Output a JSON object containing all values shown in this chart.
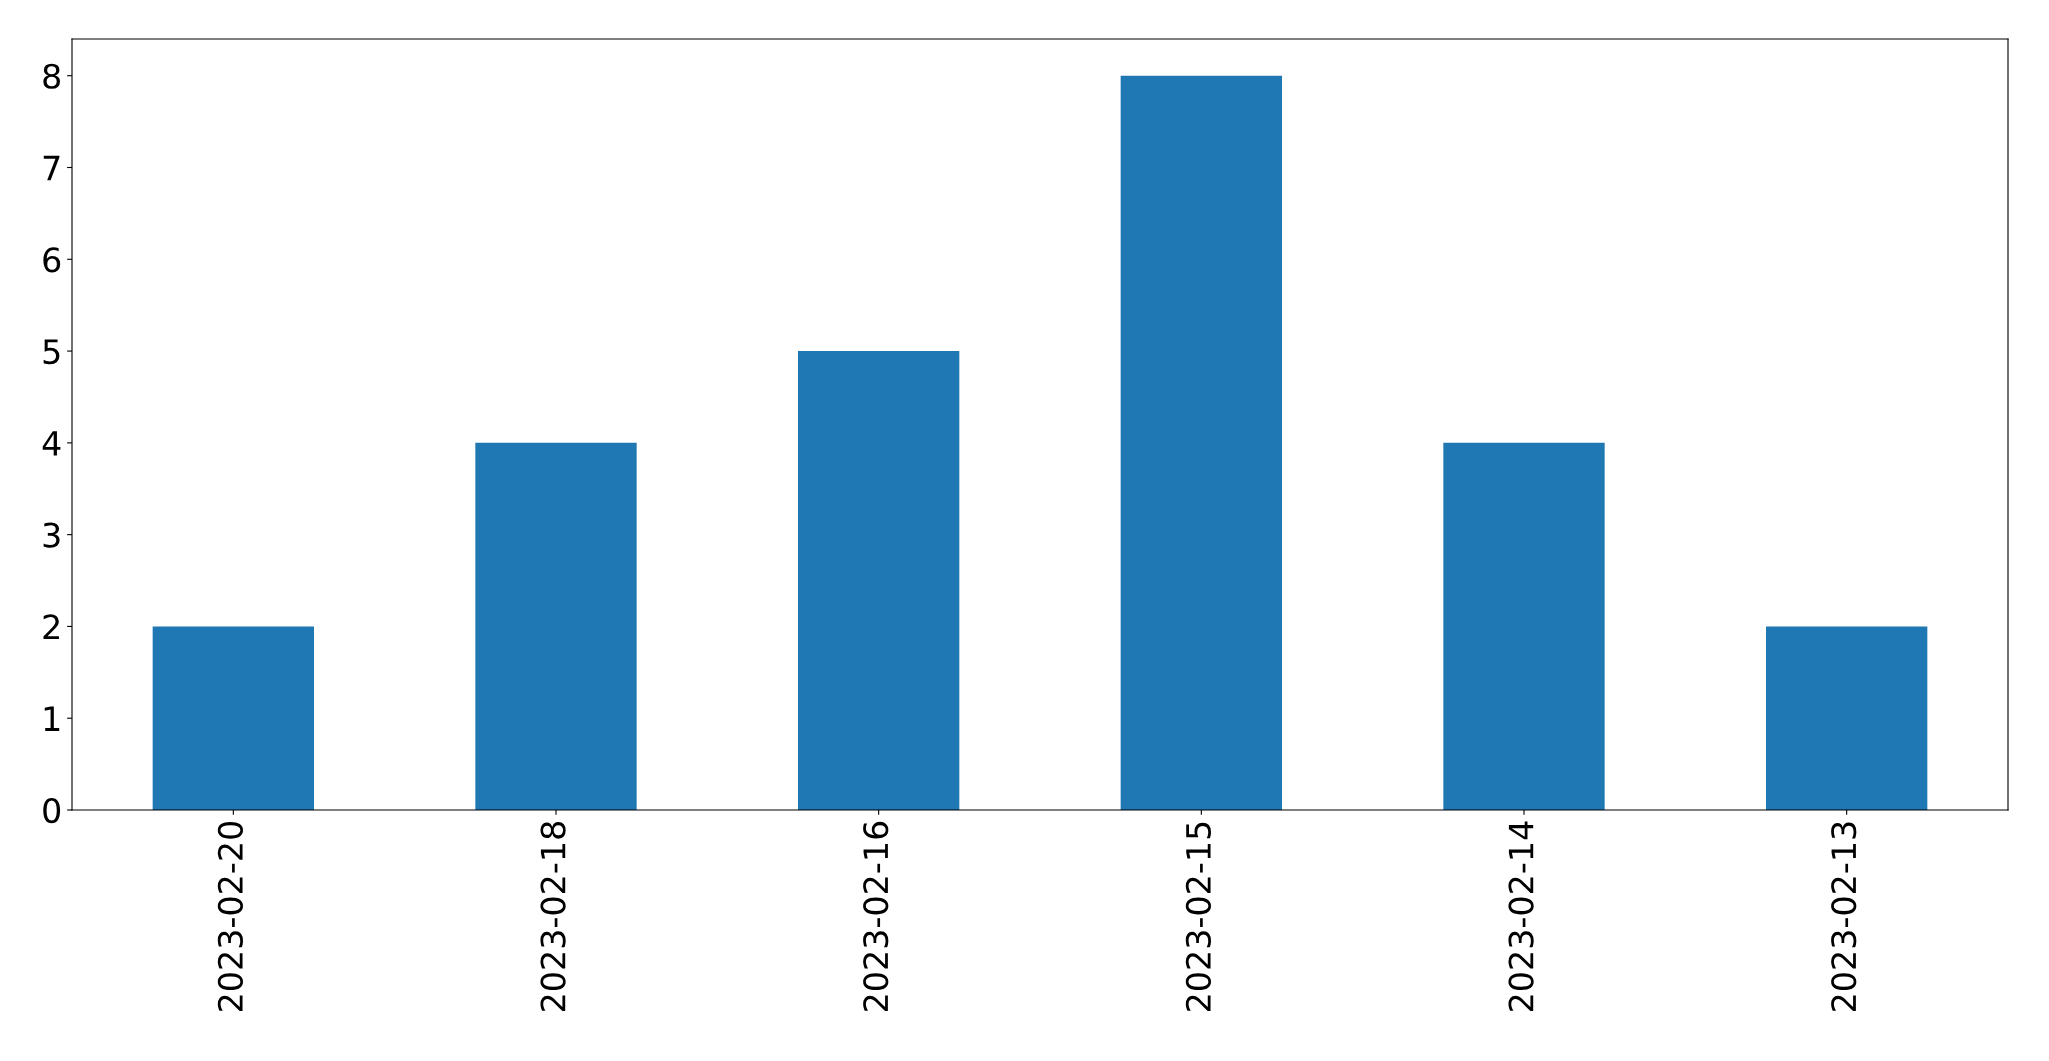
{
  "chart_data": {
    "type": "bar",
    "categories": [
      "2023-02-20",
      "2023-02-18",
      "2023-02-16",
      "2023-02-15",
      "2023-02-14",
      "2023-02-13"
    ],
    "values": [
      2,
      4,
      5,
      8,
      4,
      2
    ],
    "color": "#1f77b4",
    "ylim": [
      0,
      8.4
    ],
    "yticks": [
      0,
      1,
      2,
      3,
      4,
      5,
      6,
      7,
      8
    ],
    "grid": false,
    "legend": false
  }
}
